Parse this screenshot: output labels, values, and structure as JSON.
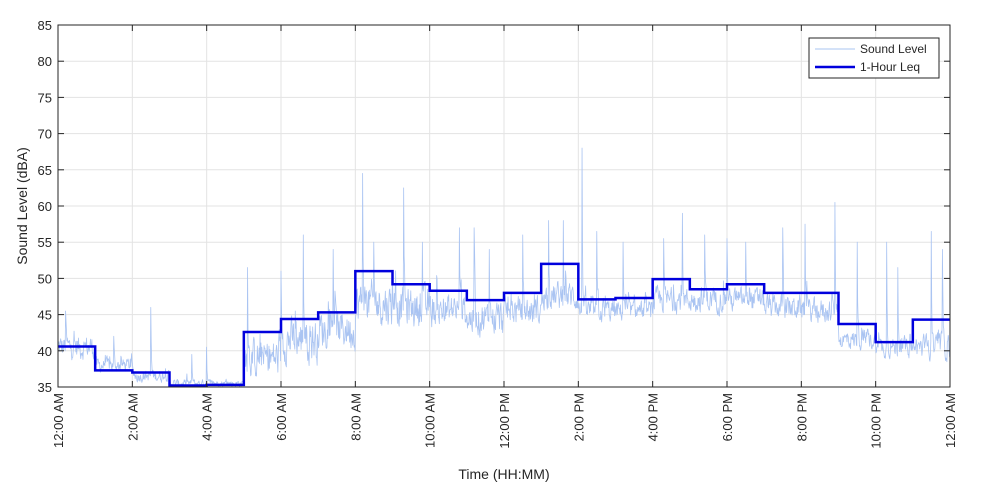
{
  "chart_data": {
    "type": "line",
    "xlabel": "Time (HH:MM)",
    "ylabel": "Sound Level (dBA)",
    "xlim": [
      0,
      24
    ],
    "ylim": [
      35,
      85
    ],
    "y_ticks": [
      35,
      40,
      45,
      50,
      55,
      60,
      65,
      70,
      75,
      80,
      85
    ],
    "x_ticks": [
      0,
      2,
      4,
      6,
      8,
      10,
      12,
      14,
      16,
      18,
      20,
      22,
      24
    ],
    "x_tick_labels": [
      "12:00 AM",
      "2:00 AM",
      "4:00 AM",
      "6:00 AM",
      "8:00 AM",
      "10:00 AM",
      "12:00 PM",
      "2:00 PM",
      "4:00 PM",
      "6:00 PM",
      "8:00 PM",
      "10:00 PM",
      "12:00 AM"
    ],
    "grid": true,
    "legend_position": "top-right",
    "series": [
      {
        "name": "Sound Level",
        "color": "#aac4f2",
        "style": "thin-noisy-line",
        "hourly_mean": [
          40.5,
          38.0,
          36.5,
          35.5,
          35.5,
          39.0,
          41.5,
          43.0,
          46.5,
          46.0,
          45.5,
          44.5,
          45.5,
          47.5,
          45.5,
          45.5,
          47.0,
          47.0,
          47.0,
          46.0,
          45.5,
          41.5,
          40.5,
          40.5
        ],
        "hourly_spread": [
          2.5,
          1.5,
          1.2,
          0.8,
          0.8,
          4.0,
          4.5,
          4.0,
          4.5,
          4.0,
          3.5,
          3.5,
          3.0,
          3.0,
          2.5,
          2.0,
          2.5,
          2.5,
          2.5,
          2.5,
          2.5,
          2.0,
          2.0,
          2.5
        ],
        "spikes": [
          [
            0.2,
            45.5
          ],
          [
            1.5,
            42.0
          ],
          [
            2.5,
            46.0
          ],
          [
            3.6,
            39.5
          ],
          [
            4.0,
            40.5
          ],
          [
            5.1,
            51.5
          ],
          [
            6.0,
            51.0
          ],
          [
            6.6,
            56.0
          ],
          [
            7.4,
            54.0
          ],
          [
            8.2,
            64.5
          ],
          [
            8.5,
            55.0
          ],
          [
            9.0,
            51.0
          ],
          [
            9.3,
            62.5
          ],
          [
            9.8,
            55.0
          ],
          [
            10.8,
            57.0
          ],
          [
            11.2,
            57.0
          ],
          [
            11.6,
            54.0
          ],
          [
            12.5,
            56.0
          ],
          [
            13.2,
            58.0
          ],
          [
            13.6,
            58.0
          ],
          [
            14.1,
            68.0
          ],
          [
            14.5,
            56.5
          ],
          [
            15.2,
            55.0
          ],
          [
            16.3,
            55.5
          ],
          [
            16.8,
            59.0
          ],
          [
            17.4,
            56.0
          ],
          [
            18.0,
            55.5
          ],
          [
            18.5,
            55.0
          ],
          [
            19.5,
            57.0
          ],
          [
            20.1,
            57.5
          ],
          [
            20.9,
            60.5
          ],
          [
            21.5,
            55.0
          ],
          [
            22.3,
            55.0
          ],
          [
            22.6,
            51.5
          ],
          [
            23.5,
            56.5
          ],
          [
            23.8,
            54.0
          ]
        ]
      },
      {
        "name": "1-Hour Leq",
        "color": "#0000dd",
        "style": "step",
        "values": [
          40.6,
          37.3,
          37.0,
          35.2,
          35.3,
          42.6,
          44.4,
          45.3,
          51.0,
          49.2,
          48.3,
          47.0,
          48.0,
          52.0,
          47.1,
          47.3,
          49.9,
          48.5,
          49.2,
          48.0,
          48.0,
          43.7,
          41.2,
          44.3
        ]
      }
    ]
  }
}
